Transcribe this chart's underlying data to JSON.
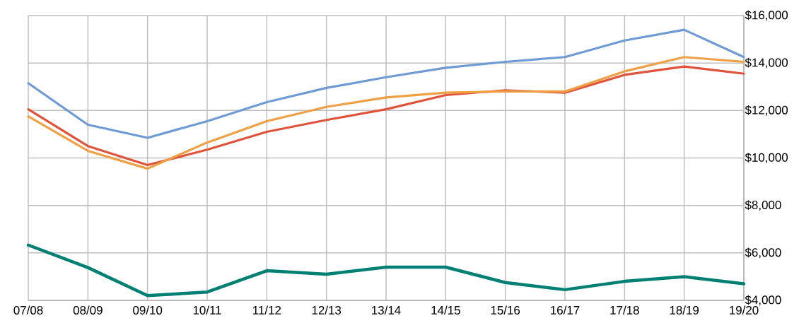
{
  "chart_data": {
    "type": "line",
    "categories": [
      "07/08",
      "08/09",
      "09/10",
      "10/11",
      "11/12",
      "12/13",
      "13/14",
      "14/15",
      "15/16",
      "16/17",
      "17/18",
      "18/19",
      "19/20"
    ],
    "series": [
      {
        "color": "#6f9bd4",
        "values": [
          13150,
          11400,
          10850,
          11550,
          12350,
          12950,
          13400,
          13800,
          14050,
          14250,
          14950,
          15400,
          14250
        ]
      },
      {
        "color": "#e0533a",
        "values": [
          12050,
          10500,
          9700,
          10350,
          11100,
          11600,
          12050,
          12650,
          12850,
          12750,
          13500,
          13850,
          13550
        ]
      },
      {
        "color": "#f0a044",
        "values": [
          11750,
          10300,
          9550,
          10650,
          11550,
          12150,
          12550,
          12750,
          12800,
          12800,
          13650,
          14250,
          14050
        ]
      },
      {
        "color": "#007f73",
        "values": [
          6330,
          5380,
          4200,
          4350,
          5250,
          5100,
          5400,
          5400,
          4750,
          4450,
          4800,
          5000,
          4700
        ]
      }
    ],
    "ylim": [
      4000,
      16000
    ],
    "yticks": [
      {
        "value": 4000,
        "label": "$4,000"
      },
      {
        "value": 6000,
        "label": "$6,000"
      },
      {
        "value": 8000,
        "label": "$8,000"
      },
      {
        "value": 10000,
        "label": "$10,000"
      },
      {
        "value": 12000,
        "label": "$12,000"
      },
      {
        "value": 14000,
        "label": "$14,000"
      },
      {
        "value": 16000,
        "label": "$16,000"
      }
    ],
    "grid": true,
    "marker": "none",
    "line_style": "solid"
  }
}
